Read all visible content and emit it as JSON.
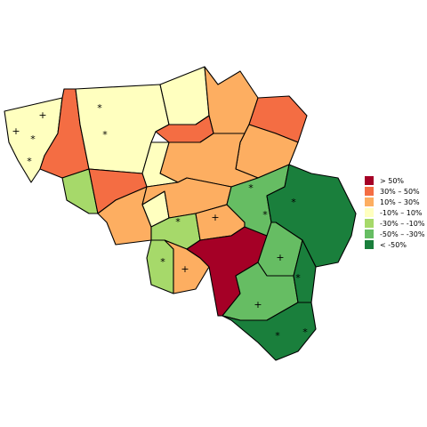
{
  "legend": {
    "items": [
      {
        "label": "> 50%",
        "color": "#a50026"
      },
      {
        "label": "30%  –  50%",
        "color": "#f46d43"
      },
      {
        "label": "10%  –  30%",
        "color": "#fdae61"
      },
      {
        "label": "-10%  –  10%",
        "color": "#ffffbf"
      },
      {
        "label": "-30%  –  -10%",
        "color": "#a6d96a"
      },
      {
        "label": "-50%  –  -30%",
        "color": "#66bd63"
      },
      {
        "label": "< -50%",
        "color": "#1a7f3c"
      }
    ]
  },
  "symbols": [
    "*",
    "+"
  ]
}
